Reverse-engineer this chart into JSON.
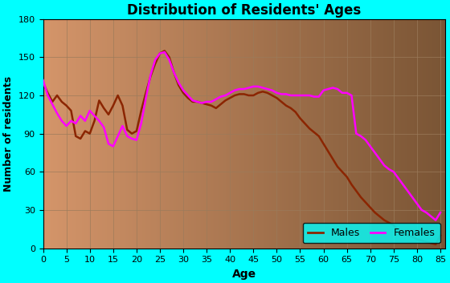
{
  "title": "Distribution of Residents' Ages",
  "xlabel": "Age",
  "ylabel": "Number of residents",
  "background_outer": "#00FFFF",
  "line_color_males": "#8B2500",
  "line_color_females": "#FF00FF",
  "ylim": [
    0,
    180
  ],
  "xlim": [
    0,
    86
  ],
  "xticks": [
    0,
    5,
    10,
    15,
    20,
    25,
    30,
    35,
    40,
    45,
    50,
    55,
    60,
    65,
    70,
    75,
    80,
    85
  ],
  "yticks": [
    0,
    30,
    60,
    90,
    120,
    150,
    180
  ],
  "ages": [
    0,
    1,
    2,
    3,
    4,
    5,
    6,
    7,
    8,
    9,
    10,
    11,
    12,
    13,
    14,
    15,
    16,
    17,
    18,
    19,
    20,
    21,
    22,
    23,
    24,
    25,
    26,
    27,
    28,
    29,
    30,
    31,
    32,
    33,
    34,
    35,
    36,
    37,
    38,
    39,
    40,
    41,
    42,
    43,
    44,
    45,
    46,
    47,
    48,
    49,
    50,
    51,
    52,
    53,
    54,
    55,
    56,
    57,
    58,
    59,
    60,
    61,
    62,
    63,
    64,
    65,
    66,
    67,
    68,
    69,
    70,
    71,
    72,
    73,
    74,
    75,
    76,
    77,
    78,
    79,
    80,
    81,
    82,
    83,
    84,
    85
  ],
  "values_males": [
    130,
    122,
    115,
    120,
    115,
    112,
    108,
    88,
    86,
    92,
    90,
    100,
    116,
    110,
    105,
    112,
    120,
    112,
    93,
    90,
    92,
    108,
    122,
    135,
    145,
    153,
    155,
    150,
    138,
    128,
    122,
    118,
    115,
    115,
    114,
    113,
    112,
    110,
    113,
    116,
    118,
    120,
    121,
    121,
    120,
    120,
    122,
    123,
    122,
    120,
    118,
    115,
    112,
    110,
    107,
    102,
    98,
    94,
    91,
    88,
    82,
    76,
    70,
    64,
    60,
    56,
    50,
    45,
    40,
    36,
    32,
    28,
    25,
    22,
    20,
    18,
    14,
    12,
    10,
    9,
    7,
    6,
    5,
    4,
    3,
    10
  ],
  "values_females": [
    132,
    120,
    113,
    106,
    100,
    96,
    100,
    98,
    104,
    100,
    108,
    104,
    100,
    95,
    82,
    80,
    88,
    96,
    88,
    86,
    85,
    98,
    118,
    136,
    148,
    153,
    154,
    148,
    138,
    130,
    124,
    120,
    116,
    115,
    114,
    115,
    115,
    117,
    119,
    120,
    122,
    124,
    125,
    125,
    126,
    127,
    127,
    126,
    125,
    124,
    122,
    121,
    121,
    120,
    120,
    120,
    120,
    120,
    119,
    119,
    124,
    125,
    126,
    125,
    122,
    122,
    120,
    90,
    88,
    85,
    80,
    75,
    70,
    65,
    62,
    60,
    55,
    50,
    45,
    40,
    35,
    30,
    28,
    25,
    22,
    28
  ]
}
